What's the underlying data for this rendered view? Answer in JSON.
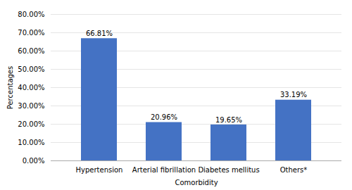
{
  "chart_data": {
    "type": "bar",
    "categories": [
      "Hypertension",
      "Arterial fibrillation",
      "Diabetes mellitus",
      "Others*"
    ],
    "values": [
      66.81,
      20.96,
      19.65,
      33.19
    ],
    "value_labels": [
      "66.81%",
      "20.96%",
      "19.65%",
      "33.19%"
    ],
    "data_labels": true,
    "color": "#4472C4",
    "xlabel": "Comorbidity",
    "ylabel": "Percentages",
    "ylim": [
      0,
      80
    ],
    "yticks": [
      {
        "value": 0,
        "label": "0.00%"
      },
      {
        "value": 10,
        "label": "10.00%"
      },
      {
        "value": 20,
        "label": "20.00%"
      },
      {
        "value": 30,
        "label": "30.00%"
      },
      {
        "value": 40,
        "label": "40.00%"
      },
      {
        "value": 50,
        "label": "50.00%"
      },
      {
        "value": 60,
        "label": "60.00%"
      },
      {
        "value": 70,
        "label": "70.00%"
      },
      {
        "value": 80,
        "label": "80.00%"
      }
    ],
    "grid": true
  }
}
